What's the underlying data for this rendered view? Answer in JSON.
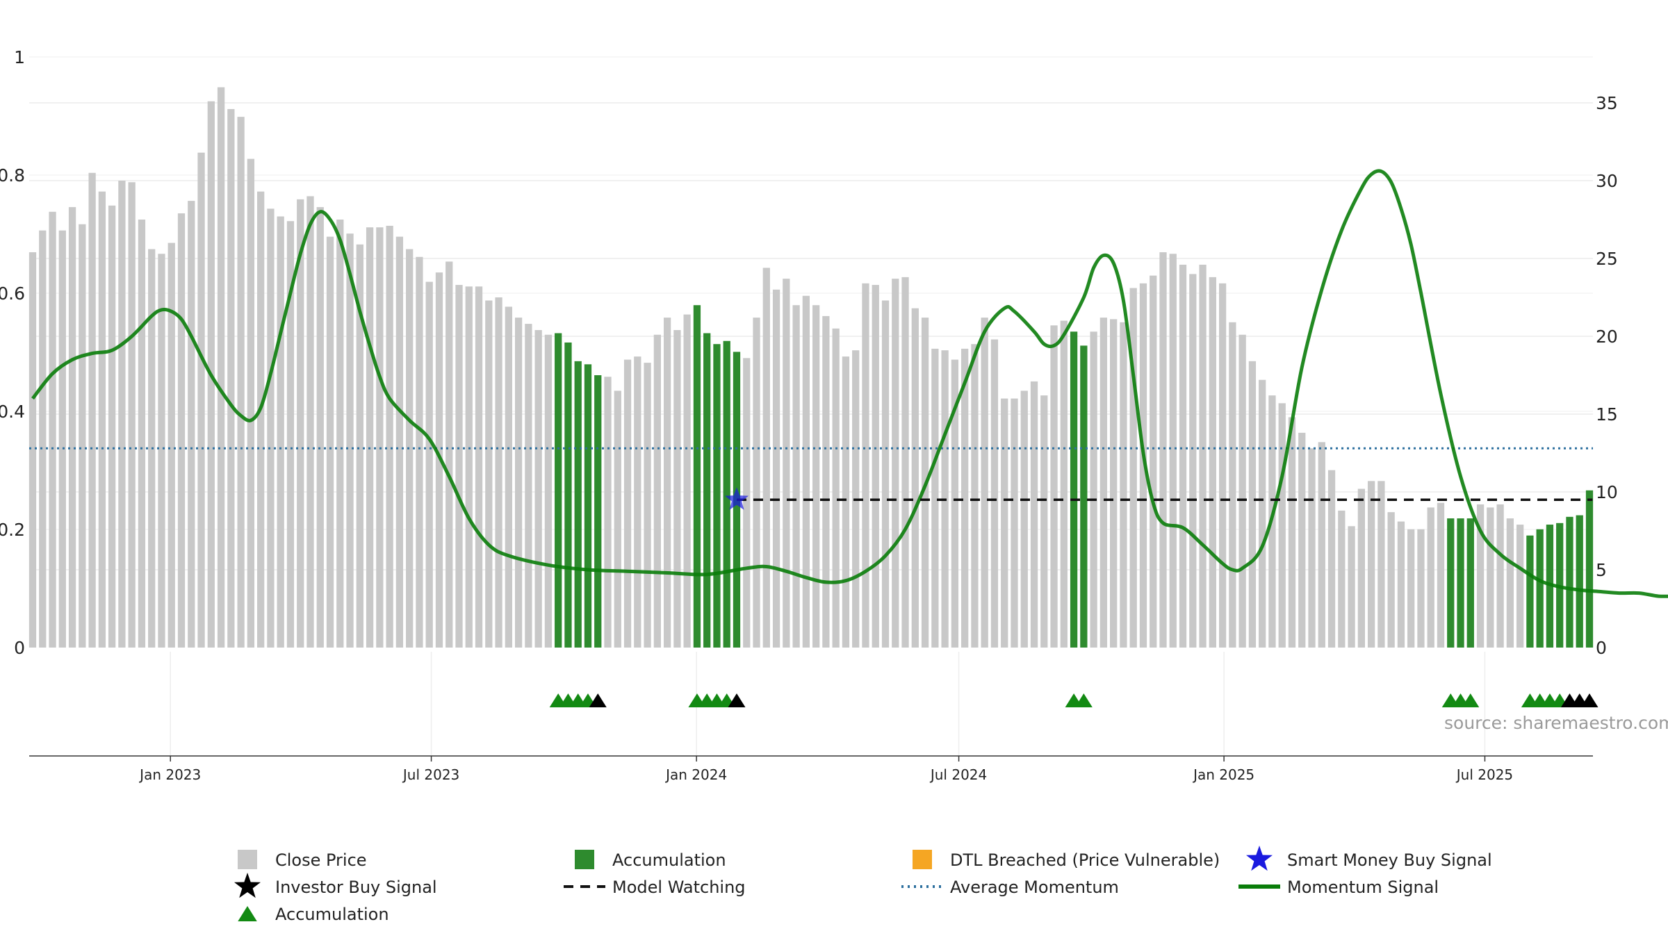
{
  "chart_data": {
    "type": "bar",
    "source_label": "source: sharemaestro.com",
    "left_axis": {
      "ylim": [
        0,
        1
      ],
      "ticks": [
        "0",
        "0.2",
        "0.4",
        "0.6",
        "0.8",
        "1"
      ]
    },
    "right_axis": {
      "ylim": [
        0,
        37
      ],
      "ticks": [
        "0",
        "5",
        "10",
        "15",
        "20",
        "25",
        "30",
        "35"
      ]
    },
    "x_axis": {
      "start": "2022-09-25",
      "end": "2025-09-14",
      "ticks": [
        {
          "date": "2023-01-01",
          "label": "Jan 2023"
        },
        {
          "date": "2023-07-01",
          "label": "Jul 2023"
        },
        {
          "date": "2024-01-01",
          "label": "Jan 2024"
        },
        {
          "date": "2024-07-01",
          "label": "Jul 2024"
        },
        {
          "date": "2025-01-01",
          "label": "Jan 2025"
        },
        {
          "date": "2025-07-01",
          "label": "Jul 2025"
        }
      ]
    },
    "colors": {
      "close": "#c8c8c8",
      "accumulation": "#2e8b2e",
      "momentum": "#0a7d0a",
      "average": "#2c6f9e",
      "watching": "#111111",
      "triangle": "#138a13",
      "investor": "#000000",
      "smart_money": "#1a1adf",
      "dtl": "#f5a623"
    },
    "weeks_start": "2022-09-25",
    "close_prices": [
      25.4,
      26.8,
      28.0,
      26.8,
      28.3,
      27.2,
      30.5,
      29.3,
      28.4,
      30.0,
      29.9,
      27.5,
      25.6,
      25.3,
      26.0,
      27.9,
      28.7,
      31.8,
      35.1,
      36.0,
      34.6,
      34.1,
      31.4,
      29.3,
      28.2,
      27.7,
      27.4,
      28.8,
      29.0,
      28.3,
      26.4,
      27.5,
      26.6,
      25.9,
      27.0,
      27.0,
      27.1,
      26.4,
      25.6,
      25.1,
      23.5,
      24.1,
      24.8,
      23.3,
      23.2,
      23.2,
      22.3,
      22.5,
      21.9,
      21.2,
      20.8,
      20.4,
      20.1,
      20.2,
      19.6,
      18.4,
      18.2,
      17.5,
      17.4,
      16.5,
      18.5,
      18.7,
      18.3,
      20.1,
      21.2,
      20.4,
      21.4,
      22.0,
      20.2,
      19.5,
      19.7,
      19.0,
      18.6,
      21.2,
      24.4,
      23.0,
      23.7,
      22.0,
      22.6,
      22.0,
      21.3,
      20.5,
      18.7,
      19.1,
      23.4,
      23.3,
      22.3,
      23.7,
      23.8,
      21.8,
      21.2,
      19.2,
      19.1,
      18.5,
      19.2,
      19.5,
      21.2,
      19.8,
      16.0,
      16.0,
      16.5,
      17.1,
      16.2,
      20.7,
      21.0,
      20.3,
      19.4,
      20.3,
      21.2,
      21.1,
      20.9,
      23.1,
      23.4,
      23.9,
      25.4,
      25.3,
      24.6,
      24.0,
      24.6,
      23.8,
      23.4,
      20.9,
      20.1,
      18.4,
      17.2,
      16.2,
      15.7,
      14.8,
      13.8,
      12.8,
      13.2,
      11.4,
      8.8,
      7.8,
      10.2,
      10.7,
      10.7,
      8.7,
      8.1,
      7.6,
      7.6,
      9.0,
      9.3,
      8.3,
      8.3,
      8.3,
      9.2,
      9.0,
      9.2,
      8.3,
      7.9,
      7.2,
      7.6,
      7.9,
      8.0,
      8.4,
      8.5,
      10.1
    ],
    "accumulation_bar_indices": [
      53,
      54,
      55,
      56,
      57,
      67,
      68,
      69,
      70,
      71,
      105,
      106,
      143,
      144,
      145,
      151,
      152,
      153,
      154,
      155,
      156,
      157
    ],
    "accumulation_triangle_indices": [
      53,
      54,
      55,
      56,
      67,
      68,
      69,
      70,
      105,
      106,
      143,
      144,
      145,
      151,
      152,
      153,
      154
    ],
    "investor_buy_indices": [
      57,
      71,
      155,
      156,
      157
    ],
    "smart_money_index": 71,
    "model_watching": {
      "from_index": 71,
      "to_index": 157,
      "level": 9.5
    },
    "average_momentum": 12.8,
    "momentum_knots": [
      [
        0,
        16.0
      ],
      [
        2,
        17.6
      ],
      [
        4,
        18.5
      ],
      [
        6,
        18.9
      ],
      [
        8,
        19.1
      ],
      [
        10,
        20.0
      ],
      [
        12,
        21.3
      ],
      [
        13,
        21.7
      ],
      [
        14,
        21.6
      ],
      [
        15,
        21.1
      ],
      [
        16,
        20.0
      ],
      [
        18,
        17.5
      ],
      [
        20,
        15.6
      ],
      [
        21,
        14.9
      ],
      [
        22,
        14.6
      ],
      [
        23,
        15.4
      ],
      [
        24,
        17.6
      ],
      [
        25,
        20.2
      ],
      [
        26,
        22.8
      ],
      [
        27,
        25.3
      ],
      [
        28,
        27.2
      ],
      [
        29,
        28.0
      ],
      [
        30,
        27.5
      ],
      [
        31,
        26.2
      ],
      [
        32,
        24.0
      ],
      [
        33,
        21.6
      ],
      [
        34,
        19.4
      ],
      [
        35,
        17.4
      ],
      [
        36,
        16.0
      ],
      [
        38,
        14.6
      ],
      [
        40,
        13.4
      ],
      [
        42,
        11.0
      ],
      [
        44,
        8.3
      ],
      [
        46,
        6.6
      ],
      [
        48,
        5.9
      ],
      [
        52,
        5.3
      ],
      [
        56,
        5.0
      ],
      [
        60,
        4.9
      ],
      [
        64,
        4.8
      ],
      [
        68,
        4.7
      ],
      [
        72,
        5.1
      ],
      [
        74,
        5.2
      ],
      [
        76,
        4.9
      ],
      [
        78,
        4.5
      ],
      [
        80,
        4.2
      ],
      [
        82,
        4.3
      ],
      [
        84,
        4.9
      ],
      [
        86,
        5.9
      ],
      [
        88,
        7.6
      ],
      [
        90,
        10.4
      ],
      [
        92,
        13.7
      ],
      [
        94,
        17.0
      ],
      [
        96,
        20.3
      ],
      [
        98,
        21.8
      ],
      [
        99,
        21.6
      ],
      [
        101,
        20.3
      ],
      [
        102,
        19.5
      ],
      [
        103,
        19.4
      ],
      [
        104,
        20.1
      ],
      [
        106,
        22.5
      ],
      [
        107,
        24.4
      ],
      [
        108,
        25.2
      ],
      [
        109,
        24.7
      ],
      [
        110,
        22.3
      ],
      [
        111,
        17.5
      ],
      [
        112,
        12.5
      ],
      [
        113,
        9.3
      ],
      [
        114,
        8.0
      ],
      [
        116,
        7.7
      ],
      [
        118,
        6.6
      ],
      [
        120,
        5.4
      ],
      [
        121,
        5.0
      ],
      [
        122,
        5.1
      ],
      [
        124,
        6.5
      ],
      [
        126,
        11.0
      ],
      [
        128,
        18.0
      ],
      [
        130,
        23.0
      ],
      [
        132,
        26.8
      ],
      [
        134,
        29.5
      ],
      [
        135,
        30.4
      ],
      [
        136,
        30.6
      ],
      [
        137,
        29.9
      ],
      [
        138,
        28.2
      ],
      [
        139,
        25.9
      ],
      [
        140,
        22.8
      ],
      [
        142,
        16.3
      ],
      [
        144,
        11.0
      ],
      [
        146,
        7.5
      ],
      [
        148,
        6.0
      ],
      [
        150,
        5.1
      ],
      [
        152,
        4.3
      ],
      [
        154,
        3.9
      ],
      [
        156,
        3.7
      ],
      [
        158,
        3.6
      ],
      [
        160,
        3.5
      ],
      [
        162,
        3.5
      ],
      [
        164,
        3.3
      ],
      [
        166,
        3.3
      ],
      [
        168,
        3.2
      ],
      [
        170,
        2.9
      ],
      [
        172,
        2.9
      ],
      [
        174,
        3.4
      ],
      [
        176,
        3.6
      ],
      [
        178,
        4.2
      ],
      [
        180,
        4.5
      ],
      [
        182,
        4.9
      ],
      [
        184,
        5.2
      ]
    ],
    "legend": [
      {
        "label": "Close Price",
        "symbol": "square",
        "color": "close"
      },
      {
        "label": "Accumulation",
        "symbol": "square",
        "color": "accumulation"
      },
      {
        "label": "DTL Breached (Price Vulnerable)",
        "symbol": "square",
        "color": "dtl"
      },
      {
        "label": "Smart Money Buy Signal",
        "symbol": "star",
        "color": "smart_money"
      },
      {
        "label": "Investor Buy Signal",
        "symbol": "star",
        "color": "investor"
      },
      {
        "label": "Model Watching",
        "symbol": "dash",
        "color": "watching"
      },
      {
        "label": "Average Momentum",
        "symbol": "dot",
        "color": "average"
      },
      {
        "label": "Momentum Signal",
        "symbol": "line",
        "color": "momentum"
      },
      {
        "label": "Accumulation",
        "symbol": "triangle",
        "color": "triangle"
      }
    ]
  }
}
